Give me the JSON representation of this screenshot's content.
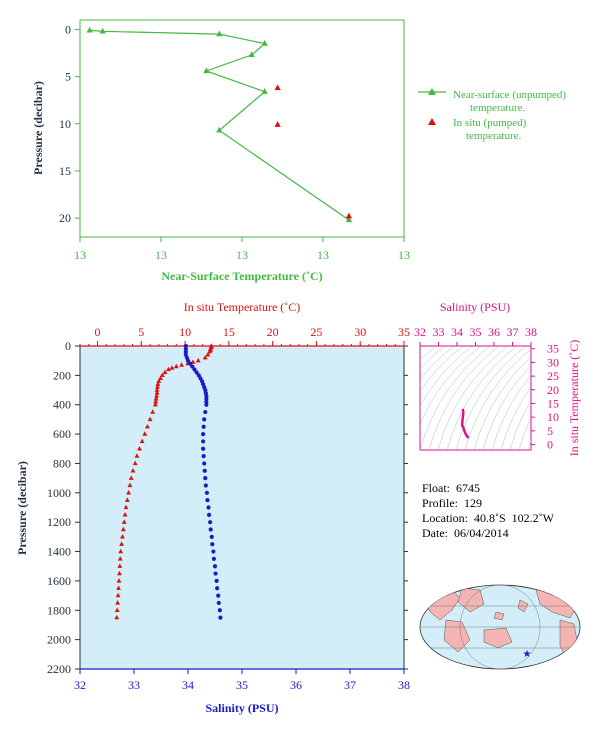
{
  "colors": {
    "near_surface": "#44b844",
    "pumped": "#dd1111",
    "temperature": "#dd1111",
    "salinity": "#1a1acc",
    "ts": "#dd1188",
    "axis_dark": "#223344",
    "plot_bg": "#d3eef8"
  },
  "chart_data": [
    {
      "type": "line",
      "id": "near-surface",
      "xlabel": "Near-Surface Temperature (˚C)",
      "ylabel": "Pressure (decibar)",
      "xticks": [
        "13",
        "13",
        "13",
        "13",
        "13"
      ],
      "xlim": [
        13.0,
        13.05
      ],
      "ylim": [
        22,
        -1
      ],
      "yticks": [
        0,
        5,
        10,
        15,
        20
      ],
      "series": [
        {
          "name": "Near-surface (unpumped) temperature.",
          "x": [
            13.0015,
            13.0035,
            13.0215,
            13.0285,
            13.0265,
            13.0195,
            13.0285,
            13.0215,
            13.0415
          ],
          "y": [
            0.1,
            0.2,
            0.5,
            1.5,
            2.7,
            4.4,
            6.6,
            10.7,
            20.2
          ]
        },
        {
          "name": "In situ (pumped) temperature.",
          "x": [
            13.0305,
            13.0305,
            13.0415
          ],
          "y": [
            6.2,
            10.1,
            19.8
          ]
        }
      ]
    },
    {
      "type": "line",
      "id": "profile",
      "title": "In situ Temperature (˚C)",
      "xlabel": "Salinity (PSU)",
      "ylabel": "Pressure (decibar)",
      "temp_lim": [
        -2,
        35
      ],
      "temp_ticks": [
        0,
        5,
        10,
        15,
        20,
        25,
        30,
        35
      ],
      "sal_lim": [
        32,
        38
      ],
      "sal_ticks": [
        32,
        33,
        34,
        35,
        36,
        37,
        38
      ],
      "ylim": [
        2200,
        0
      ],
      "yticks": [
        0,
        200,
        400,
        600,
        800,
        1000,
        1200,
        1400,
        1600,
        1800,
        2000,
        2200
      ],
      "series": [
        {
          "name": "In situ Temperature",
          "pressure": [
            0,
            10,
            20,
            30,
            40,
            60,
            80,
            100,
            110,
            120,
            130,
            140,
            150,
            160,
            180,
            200,
            220,
            240,
            260,
            280,
            300,
            320,
            340,
            360,
            380,
            400,
            450,
            500,
            550,
            600,
            650,
            700,
            750,
            800,
            850,
            900,
            950,
            1000,
            1050,
            1100,
            1150,
            1200,
            1250,
            1300,
            1350,
            1400,
            1450,
            1500,
            1550,
            1600,
            1650,
            1700,
            1750,
            1800,
            1850
          ],
          "values": [
            13.0,
            13.0,
            12.9,
            12.9,
            12.8,
            12.6,
            12.3,
            11.5,
            10.9,
            10.3,
            9.6,
            9.0,
            8.5,
            8.1,
            7.7,
            7.4,
            7.2,
            7.0,
            6.9,
            6.85,
            6.8,
            6.8,
            6.75,
            6.7,
            6.65,
            6.6,
            6.3,
            6.0,
            5.7,
            5.4,
            5.1,
            4.8,
            4.5,
            4.3,
            4.05,
            3.85,
            3.7,
            3.55,
            3.4,
            3.25,
            3.15,
            3.05,
            2.95,
            2.85,
            2.75,
            2.65,
            2.6,
            2.55,
            2.5,
            2.45,
            2.4,
            2.35,
            2.3,
            2.25,
            2.2
          ]
        },
        {
          "name": "Salinity",
          "pressure": [
            0,
            20,
            40,
            60,
            80,
            100,
            120,
            140,
            160,
            180,
            200,
            220,
            240,
            260,
            280,
            300,
            320,
            340,
            360,
            380,
            400,
            450,
            500,
            550,
            600,
            650,
            700,
            750,
            800,
            850,
            900,
            950,
            1000,
            1050,
            1100,
            1150,
            1200,
            1250,
            1300,
            1350,
            1400,
            1450,
            1500,
            1550,
            1600,
            1650,
            1700,
            1750,
            1800,
            1850
          ],
          "values": [
            33.96,
            33.96,
            33.96,
            33.96,
            33.98,
            34.0,
            34.04,
            34.08,
            34.12,
            34.16,
            34.2,
            34.23,
            34.26,
            34.28,
            34.3,
            34.32,
            34.33,
            34.34,
            34.34,
            34.34,
            34.34,
            34.32,
            34.3,
            34.29,
            34.28,
            34.28,
            34.28,
            34.29,
            34.3,
            34.31,
            34.32,
            34.33,
            34.35,
            34.36,
            34.38,
            34.39,
            34.41,
            34.42,
            34.44,
            34.45,
            34.47,
            34.48,
            34.5,
            34.51,
            34.53,
            34.54,
            34.56,
            34.57,
            34.59,
            34.6
          ]
        }
      ]
    },
    {
      "type": "scatter",
      "id": "ts-diagram",
      "title": "Salinity (PSU)",
      "ylabel": "In situ Temperature (˚C)",
      "sal_lim": [
        32,
        38
      ],
      "sal_ticks": [
        32,
        33,
        34,
        35,
        36,
        37,
        38
      ],
      "temp_lim": [
        -2,
        36
      ],
      "temp_ticks": [
        0,
        5,
        10,
        15,
        20,
        25,
        30,
        35
      ],
      "series": [
        {
          "name": "T-S",
          "salinity": [
            34.3,
            34.33,
            34.34,
            34.32,
            34.3,
            34.29,
            34.28,
            34.28,
            34.3,
            34.32,
            34.35,
            34.38,
            34.41,
            34.44,
            34.47,
            34.5,
            34.53,
            34.56,
            34.59,
            34.6
          ],
          "temperature": [
            13.0,
            12.5,
            11.5,
            10.3,
            9.0,
            8.1,
            7.4,
            6.9,
            6.8,
            6.6,
            6.0,
            5.4,
            4.8,
            4.3,
            3.85,
            3.55,
            3.25,
            2.95,
            2.6,
            2.3
          ]
        }
      ]
    }
  ],
  "info": {
    "float": "Float:  6745",
    "profile": "Profile:  129",
    "location": "Location:  40.8˚S  102.2˚W",
    "date": "Date:  06/04/2014"
  },
  "map": {
    "marker_lat": -40.8,
    "marker_lon": -102.2
  }
}
